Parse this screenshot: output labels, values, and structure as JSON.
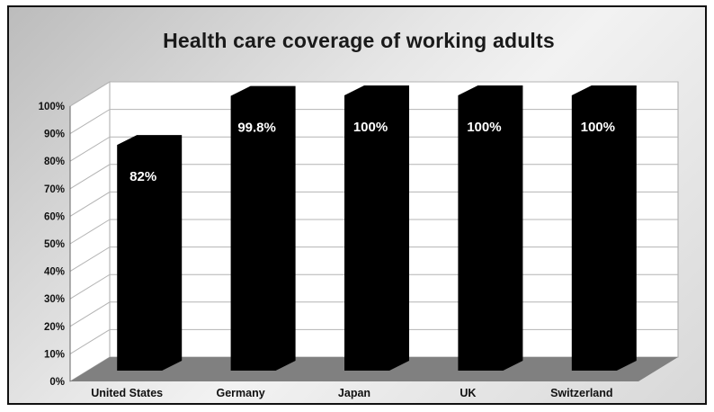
{
  "chart_data": {
    "type": "bar",
    "title": "Health care coverage of working adults",
    "categories": [
      "United States",
      "Germany",
      "Japan",
      "UK",
      "Switzerland"
    ],
    "values": [
      82,
      99.8,
      100,
      100,
      100
    ],
    "data_labels": [
      "82%",
      "99.8%",
      "100%",
      "100%",
      "100%"
    ],
    "ylim": [
      0,
      100
    ],
    "yticks": [
      0,
      10,
      20,
      30,
      40,
      50,
      60,
      70,
      80,
      90,
      100
    ],
    "ytick_labels": [
      "0%",
      "10%",
      "20%",
      "30%",
      "40%",
      "50%",
      "60%",
      "70%",
      "80%",
      "90%",
      "100%"
    ],
    "grid": true,
    "xlabel": "",
    "ylabel": "",
    "colors": {
      "bar": "#000000",
      "bar_label": "#ffffff",
      "floor": "#808080",
      "grid": "#b4b4b4"
    }
  }
}
